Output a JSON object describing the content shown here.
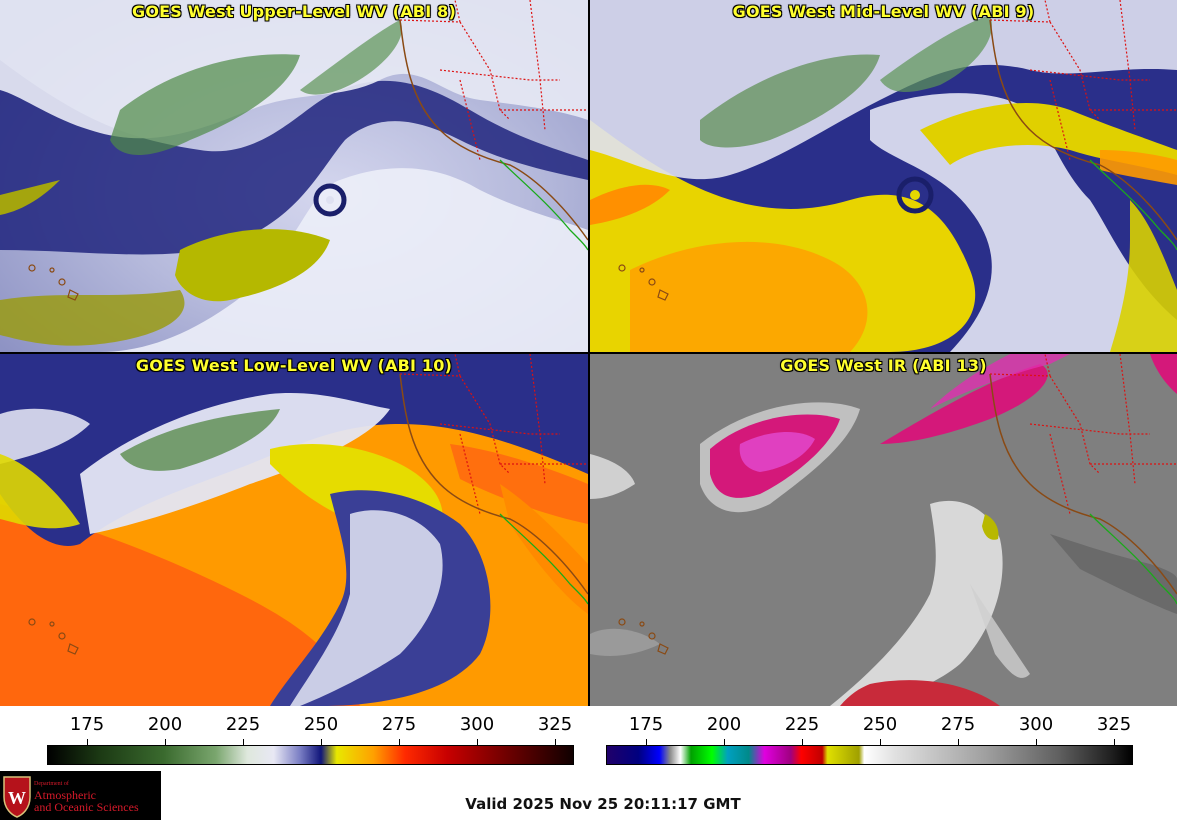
{
  "panels": [
    {
      "title": "GOES West Upper-Level WV (ABI 8)"
    },
    {
      "title": "GOES West Mid-Level WV (ABI 9)"
    },
    {
      "title": "GOES West Low-Level WV (ABI 10)"
    },
    {
      "title": "GOES West IR (ABI 13)"
    }
  ],
  "colorbars": [
    {
      "ticks": [
        "175",
        "200",
        "225",
        "250",
        "275",
        "300",
        "325"
      ]
    },
    {
      "ticks": [
        "175",
        "200",
        "225",
        "250",
        "275",
        "300",
        "325"
      ]
    }
  ],
  "logo": {
    "line1": "Department of",
    "line2": "Atmospheric",
    "line3": "and Oceanic Sciences"
  },
  "valid_time": "Valid 2025 Nov 25 20:11:17 GMT",
  "colors": {
    "wv_dark_blue": "#1a1f7a",
    "wv_white": "#e8e8f4",
    "wv_yellow": "#e8e800",
    "wv_orange": "#ff8800",
    "wv_red": "#ff2a00",
    "wv_green": "#5a8a4a",
    "ir_magenta": "#e0008a",
    "title_yellow": "#ffff2e"
  }
}
